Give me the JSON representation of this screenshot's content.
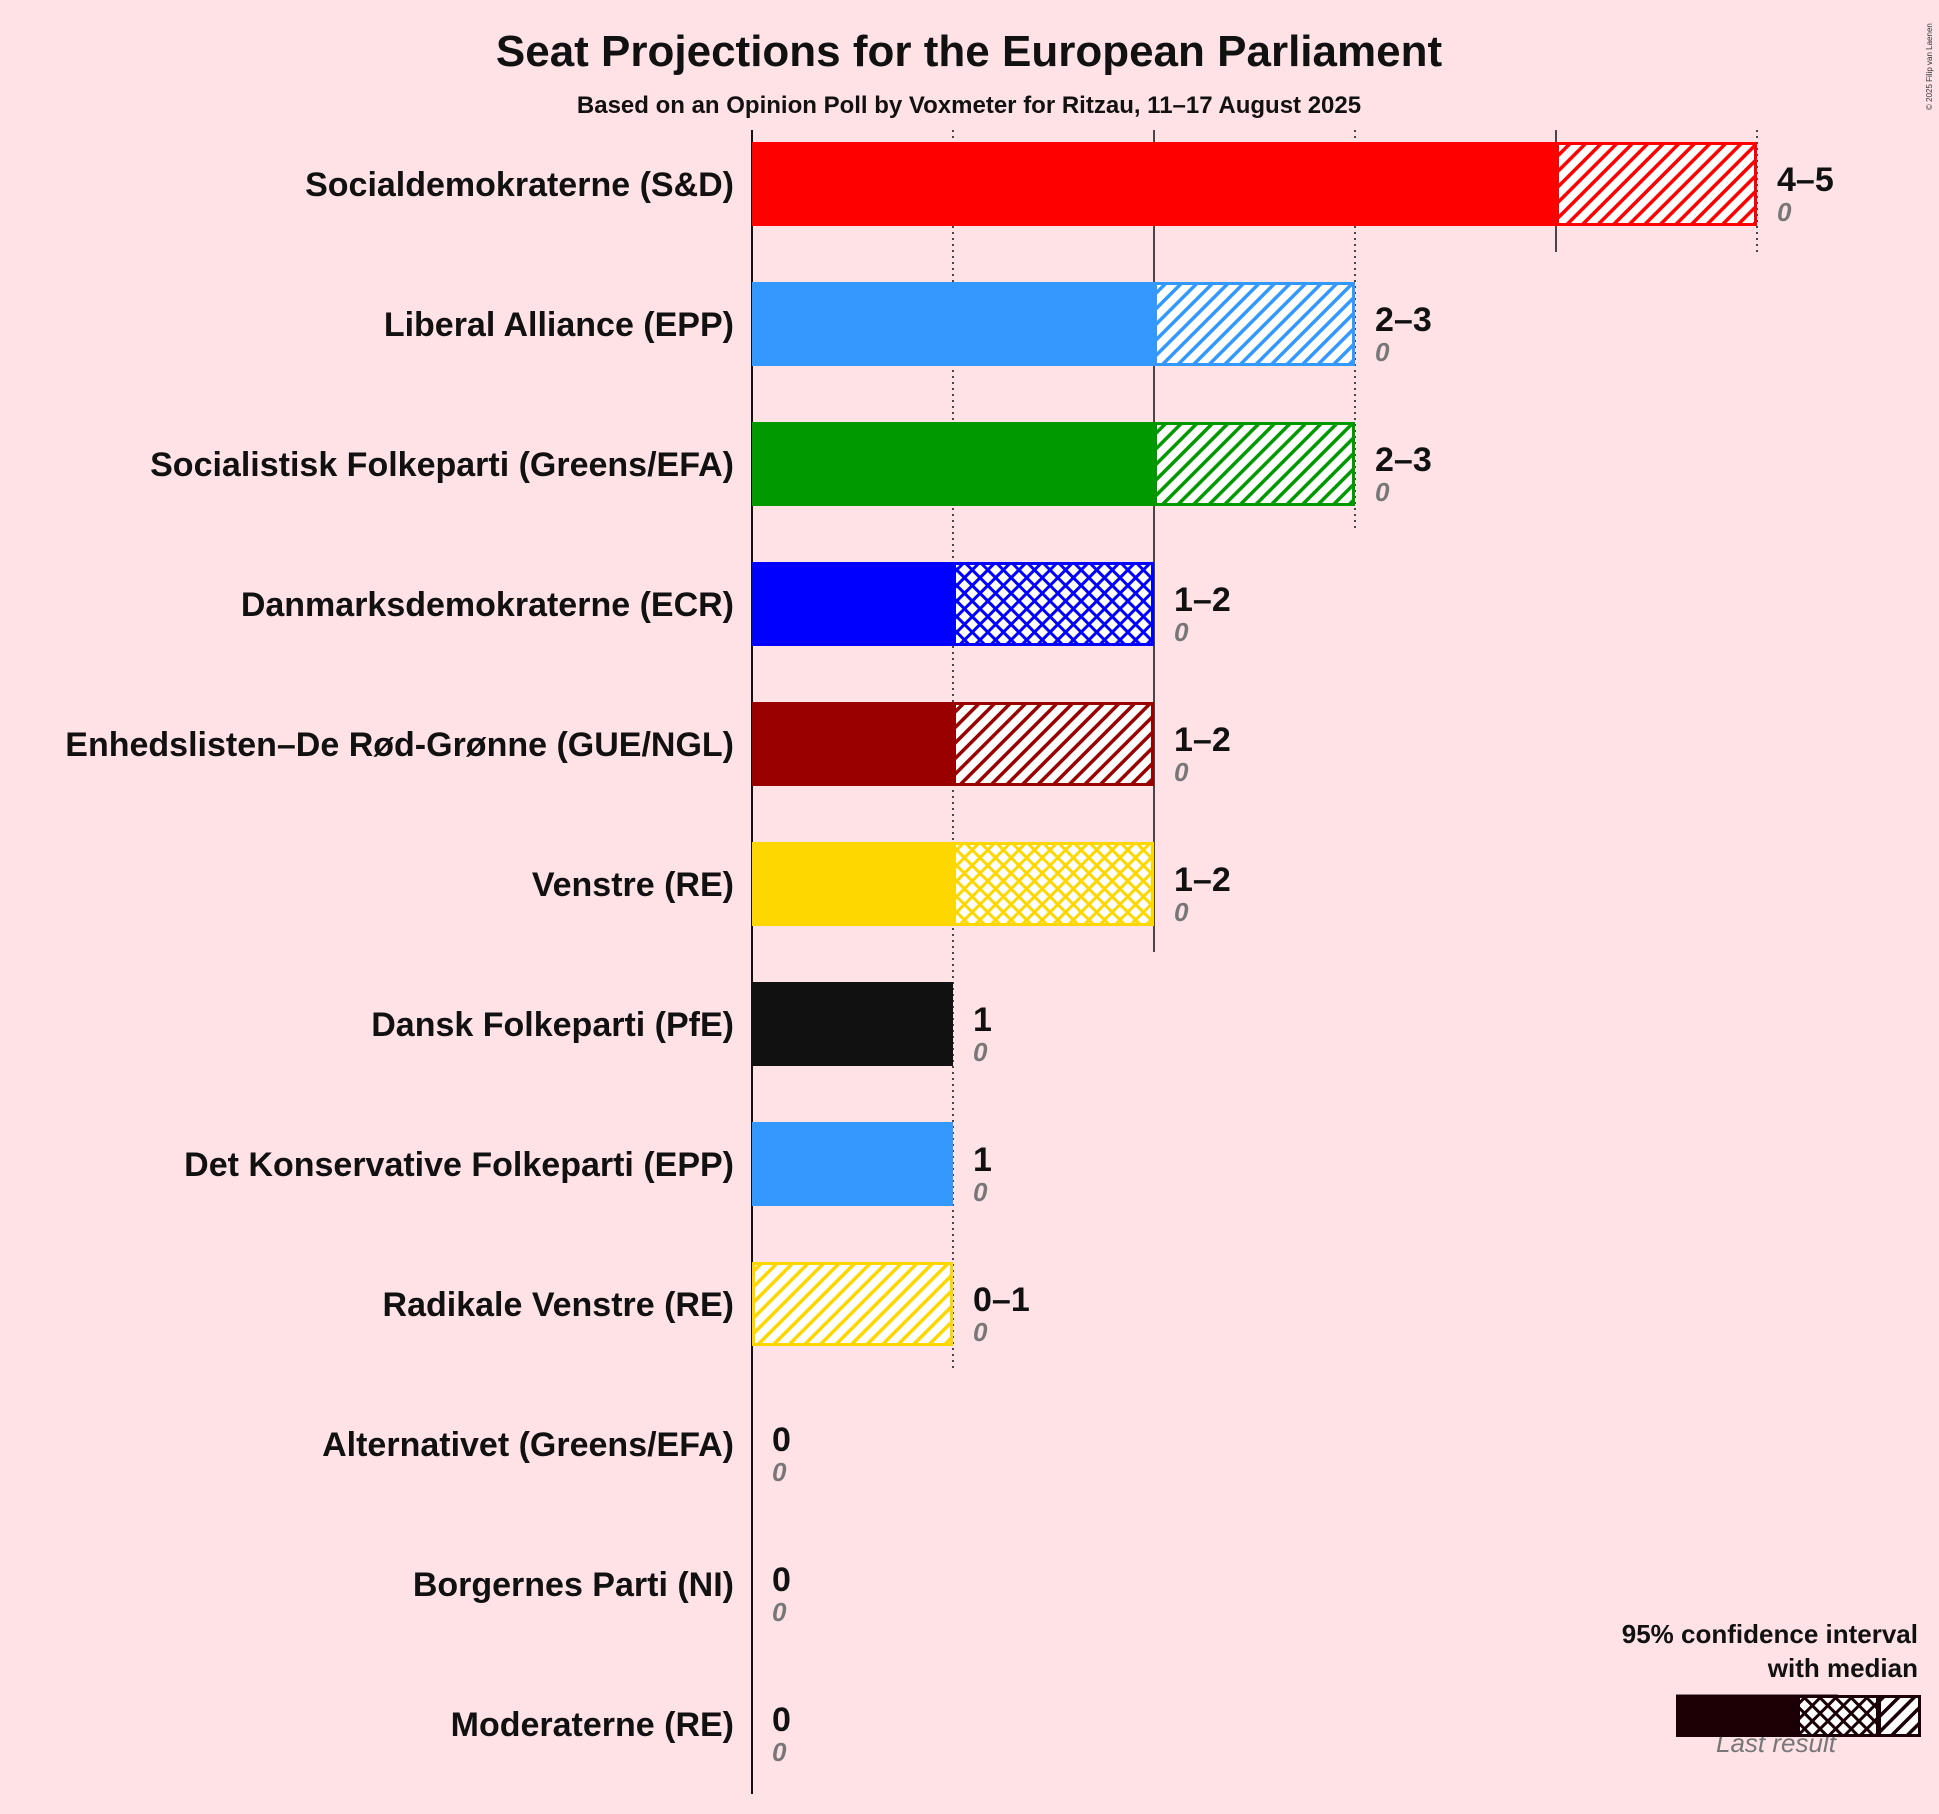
{
  "chart_data": {
    "type": "bar",
    "title": "Seat Projections for the European Parliament",
    "subtitle": "Based on an Opinion Poll by Voxmeter for Ritzau, 11–17 August 2025",
    "copyright": "© 2025 Filip van Laenen",
    "xlim": [
      0,
      5
    ],
    "categories": [
      "Socialdemokraterne (S&D)",
      "Liberal Alliance (EPP)",
      "Socialistisk Folkeparti (Greens/EFA)",
      "Danmarksdemokraterne (ECR)",
      "Enhedslisten–De Rød-Grønne (GUE/NGL)",
      "Venstre (RE)",
      "Dansk Folkeparti (PfE)",
      "Det Konservative Folkeparti (EPP)",
      "Radikale Venstre (RE)",
      "Alternativet (Greens/EFA)",
      "Borgernes Parti (NI)",
      "Moderaterne (RE)"
    ],
    "parties": [
      {
        "name": "Socialdemokraterne (S&D)",
        "color": "#FF0000",
        "low": 4,
        "median": 4,
        "high": 5,
        "label": "4–5",
        "last_result": "0",
        "last_value": 0
      },
      {
        "name": "Liberal Alliance (EPP)",
        "color": "#3399FF",
        "low": 2,
        "median": 2,
        "high": 3,
        "label": "2–3",
        "last_result": "0",
        "last_value": 0
      },
      {
        "name": "Socialistisk Folkeparti (Greens/EFA)",
        "color": "#009900",
        "low": 2,
        "median": 2,
        "high": 3,
        "label": "2–3",
        "last_result": "0",
        "last_value": 0
      },
      {
        "name": "Danmarksdemokraterne (ECR)",
        "color": "#0000FF",
        "low": 1,
        "median": 2,
        "high": 2,
        "label": "1–2",
        "last_result": "0",
        "last_value": 0
      },
      {
        "name": "Enhedslisten–De Rød-Grønne (GUE/NGL)",
        "color": "#990000",
        "low": 1,
        "median": 1,
        "high": 2,
        "label": "1–2",
        "last_result": "0",
        "last_value": 0
      },
      {
        "name": "Venstre (RE)",
        "color": "#FFD700",
        "low": 1,
        "median": 2,
        "high": 2,
        "label": "1–2",
        "last_result": "0",
        "last_value": 0
      },
      {
        "name": "Dansk Folkeparti (PfE)",
        "color": "#111111",
        "low": 1,
        "median": 1,
        "high": 1,
        "label": "1",
        "last_result": "0",
        "last_value": 0
      },
      {
        "name": "Det Konservative Folkeparti (EPP)",
        "color": "#3399FF",
        "low": 1,
        "median": 1,
        "high": 1,
        "label": "1",
        "last_result": "0",
        "last_value": 0
      },
      {
        "name": "Radikale Venstre (RE)",
        "color": "#FFD700",
        "low": 0,
        "median": 0,
        "high": 1,
        "label": "0–1",
        "last_result": "0",
        "last_value": 0
      },
      {
        "name": "Alternativet (Greens/EFA)",
        "color": "#009900",
        "low": 0,
        "median": 0,
        "high": 0,
        "label": "0",
        "last_result": "0",
        "last_value": 0
      },
      {
        "name": "Borgernes Parti (NI)",
        "color": "#3399FF",
        "low": 0,
        "median": 0,
        "high": 0,
        "label": "0",
        "last_result": "0",
        "last_value": 0
      },
      {
        "name": "Moderaterne (RE)",
        "color": "#FF8AC5",
        "low": 0,
        "median": 0,
        "high": 0,
        "label": "0",
        "last_result": "0",
        "last_value": 0
      }
    ],
    "legend": {
      "line1": "95% confidence interval",
      "line2": "with median",
      "last_result": "Last result",
      "placement": "bottom-right",
      "color": "#1A0006"
    },
    "grid": true
  }
}
